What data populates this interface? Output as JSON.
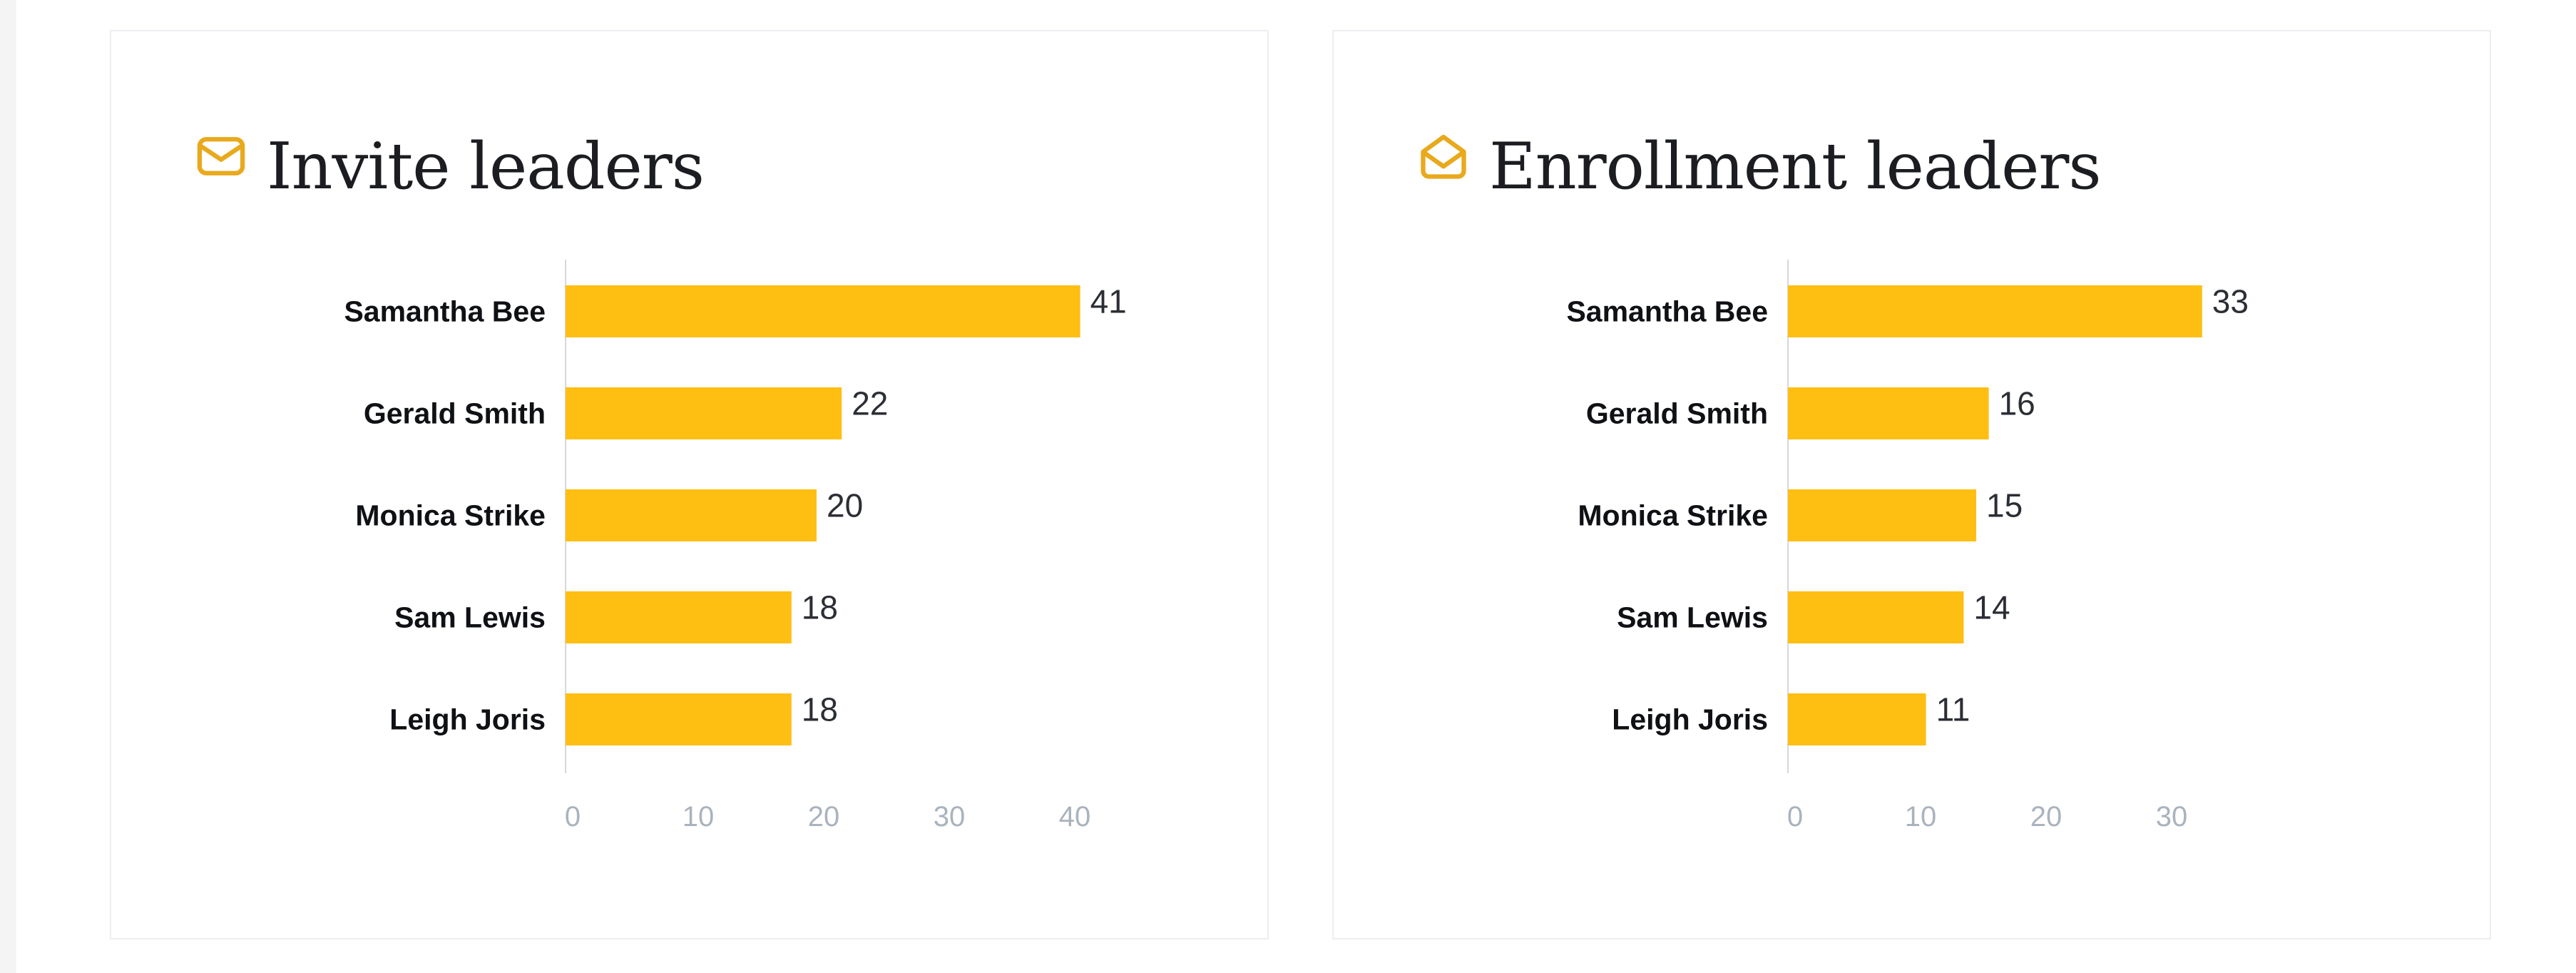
{
  "colors": {
    "accent": "#e8a91c",
    "bar": "#ffbe12",
    "axis": "#d5d8dc",
    "tick": "#aab3bd",
    "title": "#1b1d21"
  },
  "panels": [
    {
      "title": "Invite leaders",
      "icon": "mail-icon"
    },
    {
      "title": "Enrollment leaders",
      "icon": "mail-open-icon"
    }
  ],
  "chart_data": [
    {
      "type": "bar",
      "orientation": "horizontal",
      "title": "Invite leaders",
      "categories": [
        "Samantha Bee",
        "Gerald Smith",
        "Monica Strike",
        "Sam Lewis",
        "Leigh Joris"
      ],
      "values": [
        41,
        22,
        20,
        18,
        18
      ],
      "xticks": [
        0,
        10,
        20,
        30,
        40
      ],
      "xlim": [
        0,
        45
      ],
      "xlabel": "",
      "ylabel": "",
      "grid": false
    },
    {
      "type": "bar",
      "orientation": "horizontal",
      "title": "Enrollment leaders",
      "categories": [
        "Samantha Bee",
        "Gerald Smith",
        "Monica Strike",
        "Sam Lewis",
        "Leigh Joris"
      ],
      "values": [
        33,
        16,
        15,
        14,
        11
      ],
      "xticks": [
        0,
        10,
        20,
        30
      ],
      "xlim": [
        0,
        36
      ],
      "xlabel": "",
      "ylabel": "",
      "grid": false
    }
  ]
}
